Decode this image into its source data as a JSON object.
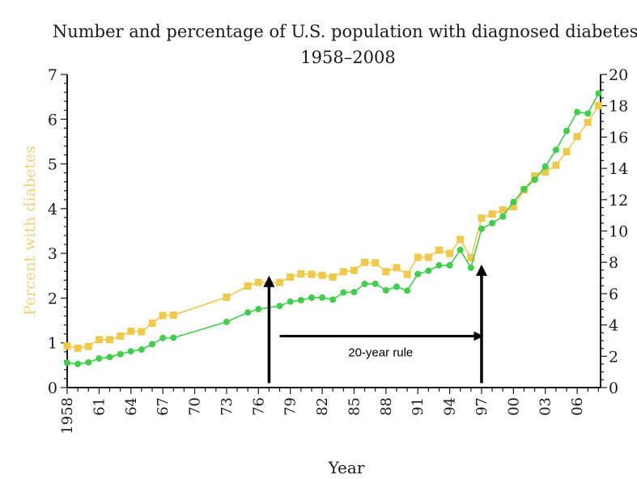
{
  "chart_data": {
    "type": "line",
    "title": "Number and percentage of U.S. population with diagnosed diabetes,",
    "subtitle": "1958–2008",
    "xlabel": "Year",
    "ylabel_left": "Percent with diabetes",
    "x_ticks": [
      "1958",
      "61",
      "64",
      "67",
      "70",
      "73",
      "76",
      "79",
      "82",
      "85",
      "88",
      "91",
      "94",
      "97",
      "00",
      "03",
      "06"
    ],
    "x_tick_values": [
      1958,
      1961,
      1964,
      1967,
      1970,
      1973,
      1976,
      1979,
      1982,
      1985,
      1988,
      1991,
      1994,
      1997,
      2000,
      2003,
      2006
    ],
    "xlim": [
      1958,
      2008.2
    ],
    "y_left_ticks": [
      "0",
      "1",
      "2",
      "3",
      "4",
      "5",
      "6",
      "7"
    ],
    "ylim_left": [
      0,
      7
    ],
    "y_right_ticks": [
      "0",
      "2",
      "4",
      "6",
      "8",
      "10",
      "12",
      "14",
      "16",
      "18",
      "20"
    ],
    "ylim_right": [
      0,
      20
    ],
    "colors": {
      "percent": "#f0c94a",
      "number": "#3ecf4a",
      "left_axis_label": "#f0d27a",
      "axes": "#1a1a1a",
      "title": "#1a1a1a"
    },
    "series": [
      {
        "axis": "left",
        "marker": "square",
        "x": [
          1958,
          1959,
          1960,
          1961,
          1962,
          1963,
          1964,
          1965,
          1966,
          1967,
          1968,
          1973,
          1975,
          1976,
          1978,
          1979,
          1980,
          1981,
          1982,
          1983,
          1984,
          1985,
          1986,
          1987,
          1988,
          1989,
          1990,
          1991,
          1992,
          1993,
          1994,
          1995,
          1996,
          1997,
          1998,
          1999,
          2000,
          2001,
          2002,
          2003,
          2004,
          2005,
          2006,
          2007,
          2008
        ],
        "values": [
          0.93,
          0.88,
          0.92,
          1.07,
          1.07,
          1.15,
          1.26,
          1.25,
          1.44,
          1.61,
          1.62,
          2.02,
          2.27,
          2.35,
          2.35,
          2.47,
          2.54,
          2.53,
          2.51,
          2.47,
          2.59,
          2.62,
          2.8,
          2.79,
          2.59,
          2.68,
          2.53,
          2.91,
          2.91,
          3.07,
          3.0,
          3.31,
          2.9,
          3.79,
          3.88,
          3.97,
          4.04,
          4.42,
          4.73,
          4.82,
          4.97,
          5.27,
          5.61,
          5.93,
          6.3
        ]
      },
      {
        "axis": "right",
        "marker": "circle",
        "x": [
          1958,
          1959,
          1960,
          1961,
          1962,
          1963,
          1964,
          1965,
          1966,
          1967,
          1968,
          1973,
          1975,
          1976,
          1978,
          1979,
          1980,
          1981,
          1982,
          1983,
          1984,
          1985,
          1986,
          1987,
          1988,
          1989,
          1990,
          1991,
          1992,
          1993,
          1994,
          1995,
          1996,
          1997,
          1998,
          1999,
          2000,
          2001,
          2002,
          2003,
          2004,
          2005,
          2006,
          2007,
          2008
        ],
        "values": [
          1.58,
          1.51,
          1.61,
          1.86,
          1.95,
          2.13,
          2.32,
          2.43,
          2.77,
          3.17,
          3.18,
          4.19,
          4.8,
          5.01,
          5.21,
          5.49,
          5.58,
          5.74,
          5.75,
          5.62,
          6.07,
          6.1,
          6.62,
          6.63,
          6.21,
          6.44,
          6.19,
          7.25,
          7.46,
          7.81,
          7.81,
          8.79,
          7.65,
          10.14,
          10.5,
          10.92,
          11.85,
          12.68,
          13.27,
          14.12,
          15.18,
          16.39,
          17.6,
          17.5,
          18.79
        ]
      }
    ],
    "annotations": {
      "rule_label": "20-year rule",
      "arrows": [
        {
          "type": "vertical-up",
          "year": 1977,
          "from_pct": 0.1,
          "to_pct": 2.45
        },
        {
          "type": "vertical-up",
          "year": 1997,
          "from_pct": 0.1,
          "to_pct": 2.7
        },
        {
          "type": "horizontal-right",
          "pct": 1.15,
          "from_year": 1978,
          "to_year": 1997
        }
      ]
    },
    "grid": false,
    "legend": "none"
  }
}
